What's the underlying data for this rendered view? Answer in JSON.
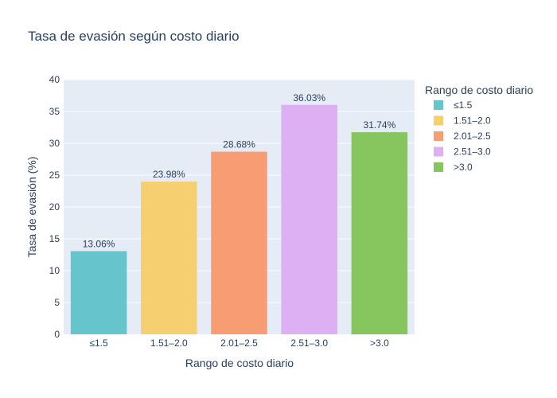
{
  "chart_data": {
    "type": "bar",
    "title": "Tasa de evasión según costo diario",
    "xlabel": "Rango de costo diario",
    "ylabel": "Tasa de evasión (%)",
    "categories": [
      "≤1.5",
      "1.51–2.0",
      "2.01–2.5",
      "2.51–3.0",
      ">3.0"
    ],
    "values": [
      13.06,
      23.98,
      28.68,
      36.03,
      31.74
    ],
    "data_labels": [
      "13.06%",
      "23.98%",
      "28.68%",
      "36.03%",
      "31.74%"
    ],
    "colors": [
      "#66c5cc",
      "#f6cf71",
      "#f89c74",
      "#dcb0f2",
      "#87c55f"
    ],
    "ylim": [
      0,
      40
    ],
    "yticks": [
      0,
      5,
      10,
      15,
      20,
      25,
      30,
      35,
      40
    ],
    "grid": true,
    "legend": {
      "title": "Rango de costo diario",
      "placement": "right"
    }
  }
}
